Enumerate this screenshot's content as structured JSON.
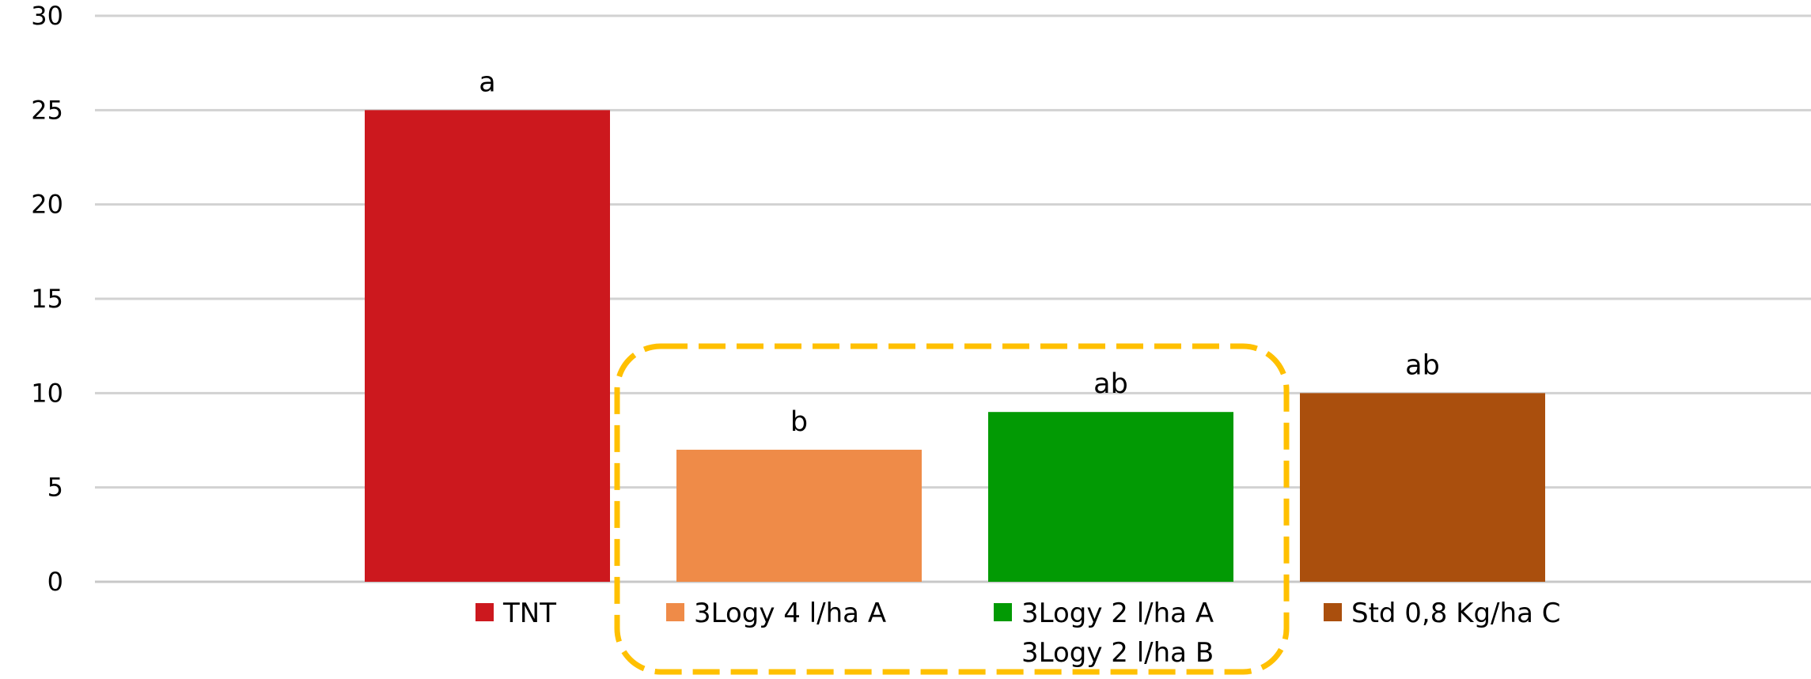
{
  "chart_data": {
    "type": "bar",
    "categories": [
      "TNT",
      "3Logy 4 l/ha A",
      "3Logy 2 l/ha A",
      "Std 0,8 Kg/ha C"
    ],
    "series": [
      {
        "name": "",
        "values": [
          25,
          7,
          9,
          10
        ],
        "colors": [
          "#cc181e",
          "#ef8b48",
          "#029a04",
          "#aa4f0d"
        ]
      }
    ],
    "data_labels": [
      "a",
      "b",
      "ab",
      "ab"
    ],
    "ylim": [
      0,
      30
    ],
    "yticks": [
      0,
      5,
      10,
      15,
      20,
      25,
      30
    ],
    "grid": true,
    "legend": {
      "placement": "bottom",
      "entries": [
        {
          "label": "TNT",
          "color": "#cc181e"
        },
        {
          "label": "3Logy 4 l/ha A",
          "color": "#ef8b48"
        },
        {
          "label": "3Logy 2 l/ha A",
          "color": "#029a04"
        },
        {
          "label": "Std 0,8 Kg/ha C",
          "color": "#aa4f0d"
        }
      ],
      "extra_text": "3Logy 2 l/ha B"
    },
    "annotation": {
      "shape": "dashed-rounded-box",
      "color": "#ffc000",
      "encloses": [
        "3Logy 4 l/ha A",
        "3Logy 2 l/ha A"
      ]
    },
    "title": "",
    "xlabel": "",
    "ylabel": ""
  }
}
